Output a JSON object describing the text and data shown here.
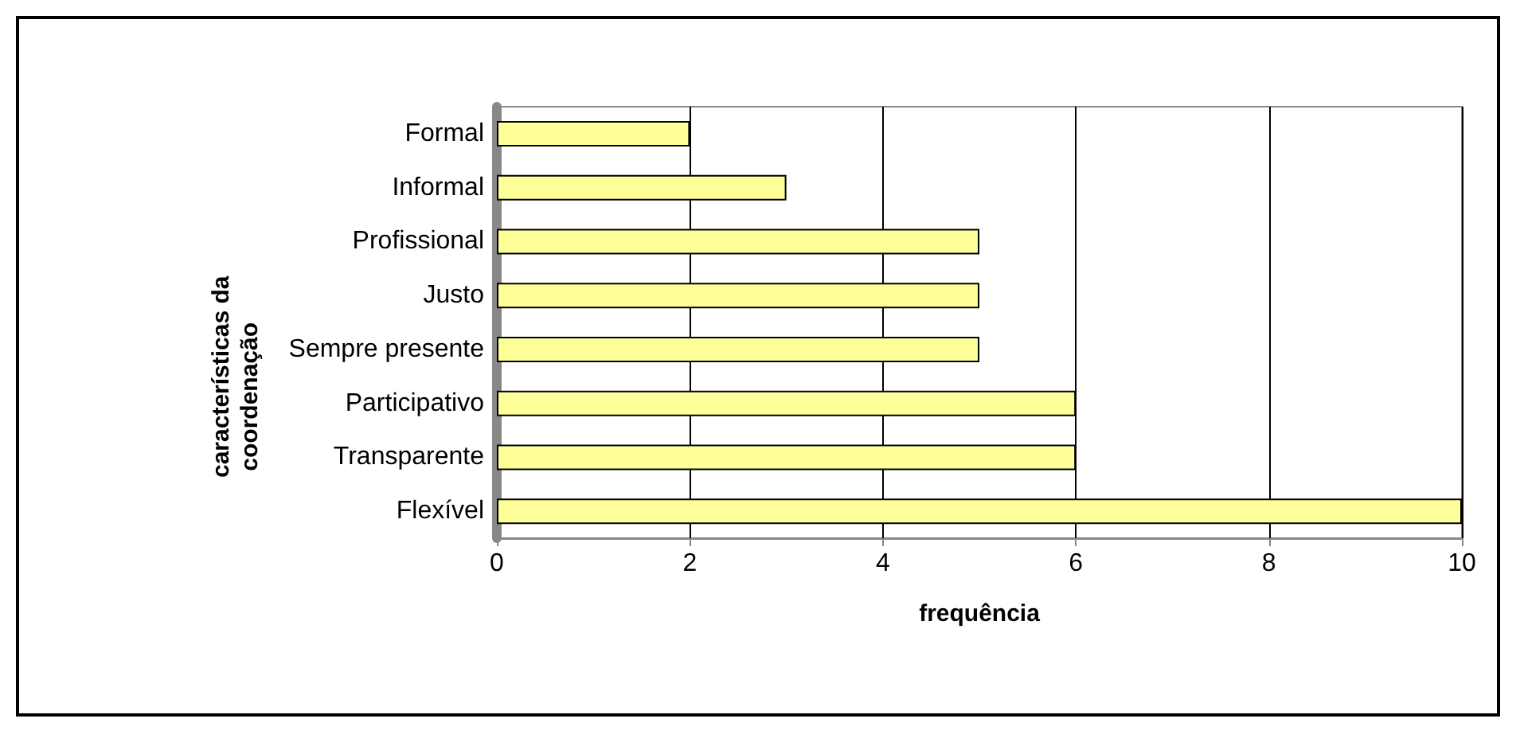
{
  "chart_data": {
    "type": "bar",
    "orientation": "horizontal",
    "xlabel": "frequência",
    "ylabel": "características da coordenação",
    "categories": [
      "Formal",
      "Informal",
      "Profissional",
      "Justo",
      "Sempre presente",
      "Participativo",
      "Transparente",
      "Flexível"
    ],
    "values": [
      2,
      3,
      5,
      5,
      5,
      6,
      6,
      10
    ],
    "color": "#ffff99",
    "xlim": [
      0,
      10
    ],
    "xticks": [
      0,
      2,
      4,
      6,
      8,
      10
    ],
    "grid": "x"
  }
}
